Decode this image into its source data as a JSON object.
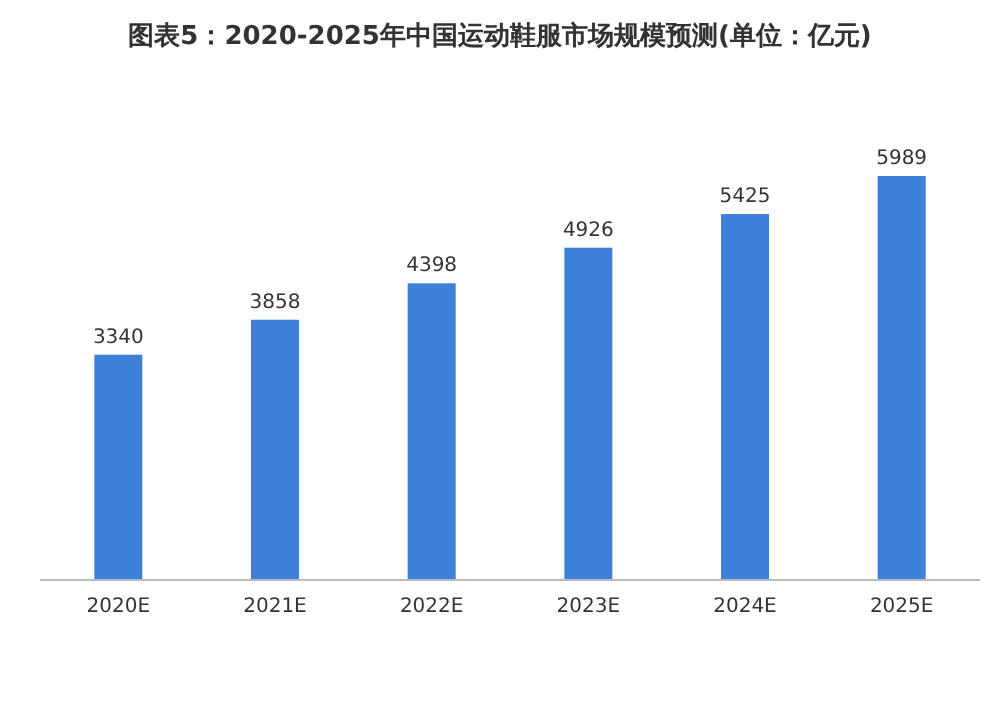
{
  "chart_data": {
    "type": "bar",
    "title": "图表5：2020-2025年中国运动鞋服市场规模预测(单位：亿元)",
    "categories": [
      "2020E",
      "2021E",
      "2022E",
      "2023E",
      "2024E",
      "2025E"
    ],
    "values": [
      3340,
      3858,
      4398,
      4926,
      5425,
      5989
    ],
    "color": "#3d7fd9",
    "data_labels": true
  }
}
